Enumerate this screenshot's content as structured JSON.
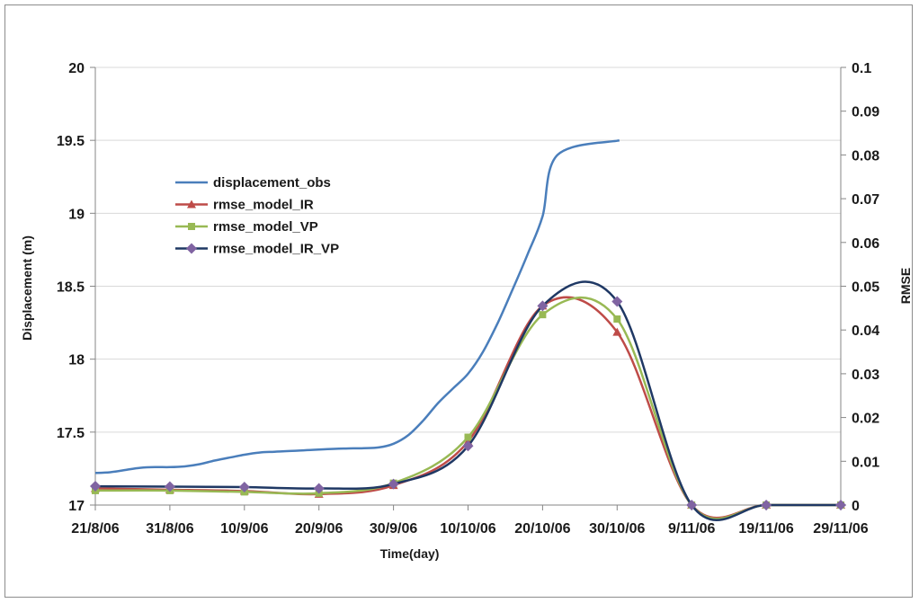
{
  "chart_data": {
    "type": "line",
    "xlabel": "Time(day)",
    "ylabel": "Displacement (m)",
    "y2label": "RMSE",
    "x_tick_labels": [
      "21/8/06",
      "31/8/06",
      "10/9/06",
      "20/9/06",
      "30/9/06",
      "10/10/06",
      "20/10/06",
      "30/10/06",
      "9/11/06",
      "19/11/06",
      "29/11/06"
    ],
    "ylim": [
      17,
      20
    ],
    "y_ticks": [
      "17",
      "17.5",
      "18",
      "18.5",
      "19",
      "19.5",
      "20"
    ],
    "y2lim": [
      0,
      0.1
    ],
    "y2_ticks": [
      "0",
      "0.01",
      "0.02",
      "0.03",
      "0.04",
      "0.05",
      "0.06",
      "0.07",
      "0.08",
      "0.09",
      "0.1"
    ],
    "grid": "horizontal",
    "legend_position": "upper-left inside plot",
    "series": [
      {
        "name": "displacement_obs",
        "axis": "left",
        "color": "#4a7ebb",
        "marker": "none",
        "x": [
          0,
          2,
          4,
          6,
          8,
          10,
          12,
          14,
          16,
          18,
          20,
          22,
          24,
          26,
          28,
          30,
          32,
          34,
          36,
          38,
          40,
          42,
          44,
          46,
          48,
          50,
          52,
          54,
          56,
          58,
          60,
          62,
          64,
          66,
          68,
          69.5,
          70.3
        ],
        "y": [
          17.22,
          17.225,
          17.24,
          17.255,
          17.26,
          17.26,
          17.265,
          17.28,
          17.305,
          17.325,
          17.345,
          17.36,
          17.365,
          17.37,
          17.375,
          17.38,
          17.385,
          17.388,
          17.39,
          17.395,
          17.42,
          17.48,
          17.58,
          17.7,
          17.8,
          17.9,
          18.05,
          18.25,
          18.48,
          18.72,
          18.98,
          19.4,
          19.5,
          19.5,
          19.5,
          19.5,
          19.5
        ]
      },
      {
        "name": "rmse_model_IR",
        "axis": "right",
        "color": "#be4b48",
        "marker": "triangle",
        "x": [
          0,
          10,
          20,
          30,
          40,
          50,
          60,
          70,
          80,
          90,
          100
        ],
        "y": [
          0.0038,
          0.0035,
          0.0032,
          0.0025,
          0.0045,
          0.0145,
          0.0455,
          0.0395,
          0.0,
          0.0,
          0.0
        ]
      },
      {
        "name": "rmse_model_VP",
        "axis": "right",
        "color": "#98b954",
        "marker": "square",
        "x": [
          0,
          10,
          20,
          30,
          40,
          50,
          60,
          70,
          80,
          90,
          100
        ],
        "y": [
          0.0033,
          0.0033,
          0.003,
          0.0027,
          0.005,
          0.0155,
          0.0435,
          0.0425,
          0.0,
          0.0,
          0.0
        ]
      },
      {
        "name": "rmse_model_IR_VP",
        "axis": "right",
        "color": "#1f3864",
        "marker": "diamond",
        "marker_color": "#8064a2",
        "x": [
          0,
          10,
          20,
          30,
          40,
          50,
          60,
          70,
          80,
          90,
          100
        ],
        "y": [
          0.0043,
          0.0042,
          0.0041,
          0.0038,
          0.0048,
          0.0135,
          0.0455,
          0.0465,
          0.0,
          0.0,
          0.0
        ]
      }
    ]
  }
}
